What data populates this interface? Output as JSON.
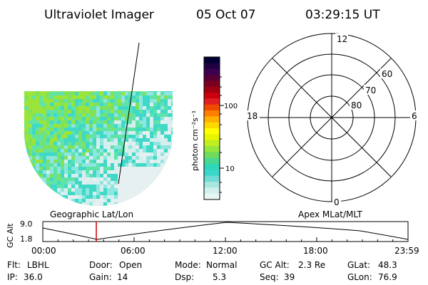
{
  "header": {
    "instrument": "Ultraviolet Imager",
    "date": "05 Oct 07",
    "time": "03:29:15 UT"
  },
  "image_panel": {
    "label": "Geographic Lat/Lon",
    "fill_colors": [
      "#9be43a",
      "#7fe25a",
      "#5fe3a8",
      "#40d9c7",
      "#8ee6e0",
      "#d6eeee",
      "#e6f0f0"
    ]
  },
  "colorbar": {
    "label": "photon cm⁻²s⁻¹",
    "ticks": [
      {
        "value": 100,
        "label": "100"
      },
      {
        "value": 10,
        "label": "10"
      }
    ],
    "colors": [
      "#000033",
      "#200040",
      "#3c0050",
      "#550035",
      "#7a0020",
      "#a00010",
      "#cc0010",
      "#e02020",
      "#f04a00",
      "#ff8000",
      "#ffb000",
      "#ffd800",
      "#ffff00",
      "#e6f500",
      "#c0ee20",
      "#96e640",
      "#6edc5a",
      "#48d890",
      "#2ed8b8",
      "#3ad8cc",
      "#6edcd4",
      "#a8e6e0",
      "#d2f0ee",
      "#e8f6f4"
    ]
  },
  "polar": {
    "label": "Apex MLat/MLT",
    "mlt_labels": {
      "top": "12",
      "bottom": "0",
      "left": "18",
      "right": "6"
    },
    "lat_rings": [
      "60",
      "70",
      "80"
    ]
  },
  "altitude": {
    "ylabel": "GC Alt",
    "yticks": [
      "9.0",
      "1.8"
    ],
    "xticks": [
      "00:00",
      "06:00",
      "12:00",
      "18:00",
      "23:59"
    ],
    "current_marker_time": "03:29"
  },
  "status": {
    "row1": [
      {
        "key": "Flt:",
        "value": "LBHL"
      },
      {
        "key": "Door:",
        "value": "Open"
      },
      {
        "key": "Mode:",
        "value": "Normal"
      },
      {
        "key": "GC Alt:",
        "value": "2.3 Re"
      },
      {
        "key": "GLat:",
        "value": "48.3"
      }
    ],
    "row2": [
      {
        "key": "IP:",
        "value": "36.0"
      },
      {
        "key": "Gain:",
        "value": "14"
      },
      {
        "key": "Dsp:",
        "value": "5.3"
      },
      {
        "key": "Seq:",
        "value": "39"
      },
      {
        "key": "GLon:",
        "value": "76.9"
      }
    ]
  }
}
